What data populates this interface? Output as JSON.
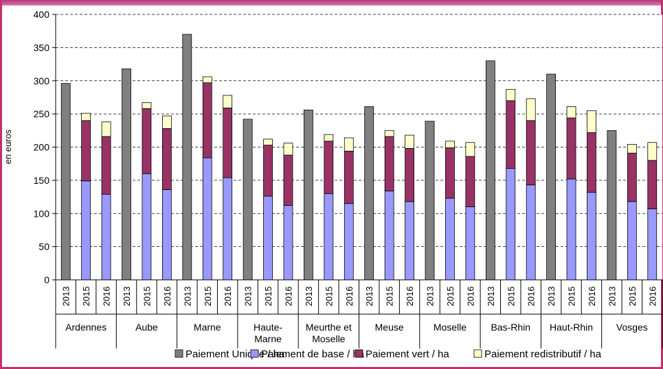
{
  "chart_data": {
    "type": "bar",
    "stacked": true,
    "ylabel": "en euros",
    "ylim": [
      0,
      400
    ],
    "yticks": [
      0,
      50,
      100,
      150,
      200,
      250,
      300,
      350,
      400
    ],
    "grid": true,
    "legend_position": "bottom",
    "groups": [
      {
        "name": "Ardennes",
        "years": [
          "2013",
          "2015",
          "2016"
        ]
      },
      {
        "name": "Aube",
        "years": [
          "2013",
          "2015",
          "2016"
        ]
      },
      {
        "name": "Marne",
        "years": [
          "2013",
          "2015",
          "2016"
        ]
      },
      {
        "name": "Haute-\nMarne",
        "years": [
          "2013",
          "2015",
          "2016"
        ]
      },
      {
        "name": "Meurthe et\nMoselle",
        "years": [
          "2013",
          "2015",
          "2016"
        ]
      },
      {
        "name": "Meuse",
        "years": [
          "2013",
          "2015",
          "2016"
        ]
      },
      {
        "name": "Moselle",
        "years": [
          "2013",
          "2015",
          "2016"
        ]
      },
      {
        "name": "Bas-Rhin",
        "years": [
          "2013",
          "2015",
          "2016"
        ]
      },
      {
        "name": "Haut-Rhin",
        "years": [
          "2013",
          "2015",
          "2016"
        ]
      },
      {
        "name": "Vosges",
        "years": [
          "2013",
          "2015",
          "2016"
        ]
      }
    ],
    "series": [
      {
        "name": "Paiement Unique / ha",
        "color": "#808080",
        "values": [
          296,
          0,
          0,
          318,
          0,
          0,
          370,
          0,
          0,
          242,
          0,
          0,
          256,
          0,
          0,
          261,
          0,
          0,
          239,
          0,
          0,
          330,
          0,
          0,
          310,
          0,
          0,
          225,
          0,
          0
        ]
      },
      {
        "name": "Paiement de base / ha",
        "color": "#9999ff",
        "values": [
          0,
          149,
          129,
          0,
          160,
          136,
          0,
          184,
          154,
          0,
          126,
          112,
          0,
          130,
          115,
          0,
          134,
          118,
          0,
          123,
          110,
          0,
          168,
          143,
          0,
          152,
          132,
          0,
          118,
          107
        ]
      },
      {
        "name": "Paiement vert / ha",
        "color": "#993366",
        "values": [
          0,
          91,
          87,
          0,
          98,
          92,
          0,
          113,
          105,
          0,
          77,
          76,
          0,
          79,
          79,
          0,
          82,
          80,
          0,
          76,
          76,
          0,
          102,
          97,
          0,
          92,
          90,
          0,
          73,
          73
        ]
      },
      {
        "name": "Paiement redistributif / ha",
        "color": "#ffffcc",
        "values": [
          0,
          11,
          22,
          0,
          9,
          19,
          0,
          9,
          19,
          0,
          9,
          18,
          0,
          10,
          20,
          0,
          9,
          20,
          0,
          10,
          21,
          0,
          17,
          33,
          0,
          17,
          33,
          0,
          13,
          27
        ]
      }
    ]
  }
}
